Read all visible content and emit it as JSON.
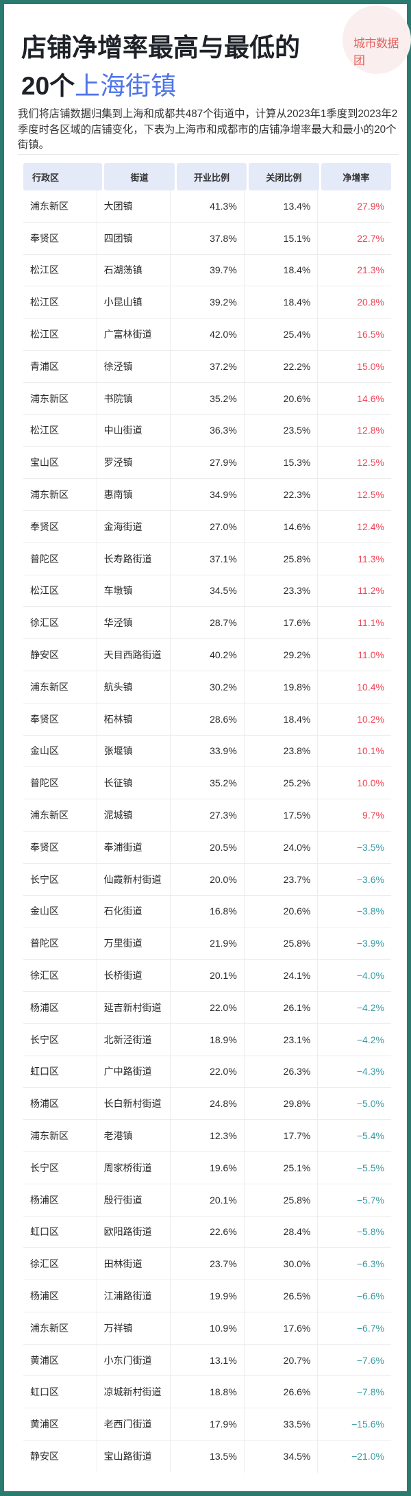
{
  "logo": {
    "text": "城市数据团"
  },
  "title": {
    "line1": "店铺净增率最高与最低的",
    "line2_prefix": "20个",
    "line2_highlight": "上海街镇"
  },
  "description": "我们将店铺数据归集到上海和成都共487个街道中，计算从2023年1季度到2023年2季度时各区域的店铺变化，下表为上海市和成都市的店铺净增率最大和最小的20个街镇。",
  "colors": {
    "positive": "#ee4658",
    "negative": "#3a9ba0",
    "highlight": "#4f74ea",
    "border": "#2b7a6f",
    "header_bg": "#e5eaf8"
  },
  "table": {
    "headers": [
      "行政区",
      "街道",
      "开业比例",
      "关闭比例",
      "净增率"
    ],
    "rows": [
      [
        "浦东新区",
        "大团镇",
        "41.3%",
        "13.4%",
        "27.9%"
      ],
      [
        "奉贤区",
        "四团镇",
        "37.8%",
        "15.1%",
        "22.7%"
      ],
      [
        "松江区",
        "石湖荡镇",
        "39.7%",
        "18.4%",
        "21.3%"
      ],
      [
        "松江区",
        "小昆山镇",
        "39.2%",
        "18.4%",
        "20.8%"
      ],
      [
        "松江区",
        "广富林街道",
        "42.0%",
        "25.4%",
        "16.5%"
      ],
      [
        "青浦区",
        "徐泾镇",
        "37.2%",
        "22.2%",
        "15.0%"
      ],
      [
        "浦东新区",
        "书院镇",
        "35.2%",
        "20.6%",
        "14.6%"
      ],
      [
        "松江区",
        "中山街道",
        "36.3%",
        "23.5%",
        "12.8%"
      ],
      [
        "宝山区",
        "罗泾镇",
        "27.9%",
        "15.3%",
        "12.5%"
      ],
      [
        "浦东新区",
        "惠南镇",
        "34.9%",
        "22.3%",
        "12.5%"
      ],
      [
        "奉贤区",
        "金海街道",
        "27.0%",
        "14.6%",
        "12.4%"
      ],
      [
        "普陀区",
        "长寿路街道",
        "37.1%",
        "25.8%",
        "11.3%"
      ],
      [
        "松江区",
        "车墩镇",
        "34.5%",
        "23.3%",
        "11.2%"
      ],
      [
        "徐汇区",
        "华泾镇",
        "28.7%",
        "17.6%",
        "11.1%"
      ],
      [
        "静安区",
        "天目西路街道",
        "40.2%",
        "29.2%",
        "11.0%"
      ],
      [
        "浦东新区",
        "航头镇",
        "30.2%",
        "19.8%",
        "10.4%"
      ],
      [
        "奉贤区",
        "柘林镇",
        "28.6%",
        "18.4%",
        "10.2%"
      ],
      [
        "金山区",
        "张堰镇",
        "33.9%",
        "23.8%",
        "10.1%"
      ],
      [
        "普陀区",
        "长征镇",
        "35.2%",
        "25.2%",
        "10.0%"
      ],
      [
        "浦东新区",
        "泥城镇",
        "27.3%",
        "17.5%",
        "9.7%"
      ],
      [
        "奉贤区",
        "奉浦街道",
        "20.5%",
        "24.0%",
        "−3.5%"
      ],
      [
        "长宁区",
        "仙霞新村街道",
        "20.0%",
        "23.7%",
        "−3.6%"
      ],
      [
        "金山区",
        "石化街道",
        "16.8%",
        "20.6%",
        "−3.8%"
      ],
      [
        "普陀区",
        "万里街道",
        "21.9%",
        "25.8%",
        "−3.9%"
      ],
      [
        "徐汇区",
        "长桥街道",
        "20.1%",
        "24.1%",
        "−4.0%"
      ],
      [
        "杨浦区",
        "延吉新村街道",
        "22.0%",
        "26.1%",
        "−4.2%"
      ],
      [
        "长宁区",
        "北新泾街道",
        "18.9%",
        "23.1%",
        "−4.2%"
      ],
      [
        "虹口区",
        "广中路街道",
        "22.0%",
        "26.3%",
        "−4.3%"
      ],
      [
        "杨浦区",
        "长白新村街道",
        "24.8%",
        "29.8%",
        "−5.0%"
      ],
      [
        "浦东新区",
        "老港镇",
        "12.3%",
        "17.7%",
        "−5.4%"
      ],
      [
        "长宁区",
        "周家桥街道",
        "19.6%",
        "25.1%",
        "−5.5%"
      ],
      [
        "杨浦区",
        "殷行街道",
        "20.1%",
        "25.8%",
        "−5.7%"
      ],
      [
        "虹口区",
        "欧阳路街道",
        "22.6%",
        "28.4%",
        "−5.8%"
      ],
      [
        "徐汇区",
        "田林街道",
        "23.7%",
        "30.0%",
        "−6.3%"
      ],
      [
        "杨浦区",
        "江浦路街道",
        "19.9%",
        "26.5%",
        "−6.6%"
      ],
      [
        "浦东新区",
        "万祥镇",
        "10.9%",
        "17.6%",
        "−6.7%"
      ],
      [
        "黄浦区",
        "小东门街道",
        "13.1%",
        "20.7%",
        "−7.6%"
      ],
      [
        "虹口区",
        "凉城新村街道",
        "18.8%",
        "26.6%",
        "−7.8%"
      ],
      [
        "黄浦区",
        "老西门街道",
        "17.9%",
        "33.5%",
        "−15.6%"
      ],
      [
        "静安区",
        "宝山路街道",
        "13.5%",
        "34.5%",
        "−21.0%"
      ]
    ]
  }
}
